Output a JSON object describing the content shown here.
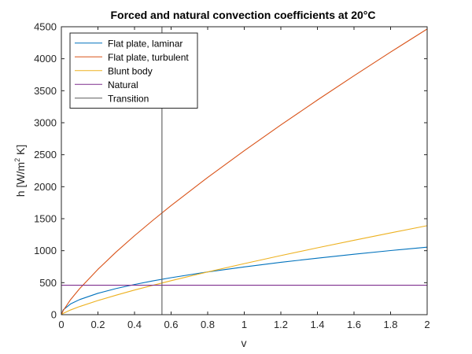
{
  "chart_data": {
    "type": "line",
    "title": "Forced and natural convection coefficients at 20°C",
    "xlabel": "v",
    "ylabel_main": "h [W/m",
    "ylabel_sup": "2",
    "ylabel_tail": " K]",
    "xlim": [
      0,
      2
    ],
    "ylim": [
      0,
      4500
    ],
    "xticks": [
      0,
      0.2,
      0.4,
      0.6,
      0.8,
      1,
      1.2,
      1.4,
      1.6,
      1.8,
      2
    ],
    "xtick_labels": [
      "0",
      "0.2",
      "0.4",
      "0.6",
      "0.8",
      "1",
      "1.2",
      "1.4",
      "1.6",
      "1.8",
      "2"
    ],
    "yticks": [
      0,
      500,
      1000,
      1500,
      2000,
      2500,
      3000,
      3500,
      4000,
      4500
    ],
    "ytick_labels": [
      "0",
      "500",
      "1000",
      "1500",
      "2000",
      "2500",
      "3000",
      "3500",
      "4000",
      "4500"
    ],
    "grid": false,
    "legend_position": "top-left",
    "series": [
      {
        "name": "Flat plate, laminar",
        "color": "#0072BD",
        "x": [
          0,
          0.01,
          0.05,
          0.1,
          0.2,
          0.3,
          0.4,
          0.5,
          0.6,
          0.8,
          1.0,
          1.2,
          1.4,
          1.6,
          1.8,
          2.0
        ],
        "y": [
          0,
          75,
          167,
          236,
          334,
          409,
          472,
          528,
          578,
          668,
          746,
          818,
          883,
          944,
          1002,
          1055
        ]
      },
      {
        "name": "Flat plate, turbulent",
        "color": "#D95319",
        "x": [
          0,
          0.01,
          0.05,
          0.1,
          0.2,
          0.3,
          0.4,
          0.5,
          0.6,
          0.8,
          1.0,
          1.2,
          1.4,
          1.6,
          1.8,
          2.0
        ],
        "y": [
          0,
          64,
          234,
          407,
          709,
          981,
          1234,
          1474,
          1705,
          2145,
          2563,
          2965,
          3355,
          3734,
          4104,
          4465
        ]
      },
      {
        "name": "Blunt body",
        "color": "#EDB120",
        "x": [
          0,
          0.01,
          0.05,
          0.1,
          0.2,
          0.3,
          0.4,
          0.5,
          0.6,
          0.8,
          1.0,
          1.2,
          1.4,
          1.6,
          1.8,
          2.0
        ],
        "y": [
          0,
          20,
          73,
          127,
          221,
          305,
          385,
          459,
          531,
          668,
          798,
          924,
          1045,
          1163,
          1278,
          1391
        ]
      },
      {
        "name": "Natural",
        "color": "#7E2F8E",
        "x": [
          0,
          2
        ],
        "y": [
          460,
          460
        ]
      },
      {
        "name": "Transition",
        "color": "#5A5A5A",
        "x": [
          0.55,
          0.55
        ],
        "y": [
          0,
          4500
        ]
      }
    ]
  }
}
